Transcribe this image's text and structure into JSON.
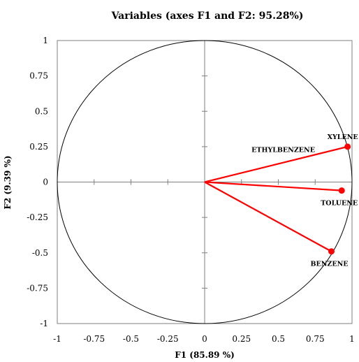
{
  "chart_data": {
    "type": "scatter",
    "title": "Variables (axes F1 and F2: 95.28%)",
    "xlabel": "F1 (85.89 %)",
    "ylabel": "F2 (9.39 %)",
    "xlim": [
      -1,
      1
    ],
    "ylim": [
      -1,
      1
    ],
    "x_ticks": [
      "-1",
      "-0.75",
      "-0.5",
      "-0.25",
      "0",
      "0.25",
      "0.5",
      "0.75",
      "1"
    ],
    "y_ticks": [
      "1",
      "0.75",
      "0.5",
      "0.25",
      "0",
      "-0.25",
      "-0.5",
      "-0.75",
      "-1"
    ],
    "correlation_circle": true,
    "grid": false,
    "vector_color": "#ff0000",
    "variables": [
      {
        "name": "XYLENE",
        "x": 0.97,
        "y": 0.25,
        "label_position": "above"
      },
      {
        "name": "ETHYLBENZENE",
        "x": 0.97,
        "y": 0.25,
        "label_position": "along-vector"
      },
      {
        "name": "TOLUENE",
        "x": 0.93,
        "y": -0.06,
        "label_position": "below"
      },
      {
        "name": "BENZENE",
        "x": 0.86,
        "y": -0.49,
        "label_position": "below"
      }
    ]
  }
}
